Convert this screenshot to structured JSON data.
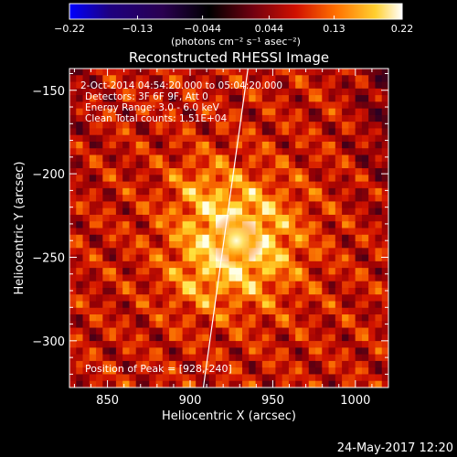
{
  "chart_data": {
    "type": "heatmap",
    "title": "Reconstructed RHESSI Image",
    "xlabel": "Heliocentric X (arcsec)",
    "ylabel": "Heliocentric Y (arcsec)",
    "xlim": [
      827,
      1020
    ],
    "ylim": [
      -328,
      -137
    ],
    "x_ticks": [
      850,
      900,
      950,
      1000
    ],
    "y_ticks": [
      -150,
      -200,
      -250,
      -300
    ],
    "x_tick_labels": [
      "850",
      "900",
      "950",
      "1000"
    ],
    "y_tick_labels": [
      "−150",
      "−200",
      "−250",
      "−300"
    ],
    "colorbar": {
      "range": [
        -0.22,
        0.22
      ],
      "ticks": [
        -0.22,
        -0.13,
        -0.044,
        0.044,
        0.13,
        0.22
      ],
      "tick_labels": [
        "−0.22",
        "−0.13",
        "−0.044",
        "0.044",
        "0.13",
        "0.22"
      ],
      "unit": "(photons cm⁻² s⁻¹ asec⁻²)",
      "colormap": [
        "#0000ff",
        "#2a0060",
        "#000000",
        "#5a0010",
        "#b00000",
        "#ff3000",
        "#ff9a00",
        "#ffee40",
        "#ffffff"
      ]
    },
    "info_lines": [
      "2-Oct-2014 04:54:20.000 to 05:04:20.000",
      "Detectors: 3F 6F 9F, Att 0",
      "Energy Range: 3.0 - 6.0 keV",
      "Clean     Total counts: 1.51E+04"
    ],
    "peak_label": "Position of Peak = [928,-240]",
    "peak": {
      "x": 928,
      "y": -240
    },
    "limb_line": [
      {
        "x": 908,
        "y": -328
      },
      {
        "x": 935,
        "y": -137
      }
    ],
    "grid": false
  },
  "timestamp": "24-May-2017 12:20"
}
